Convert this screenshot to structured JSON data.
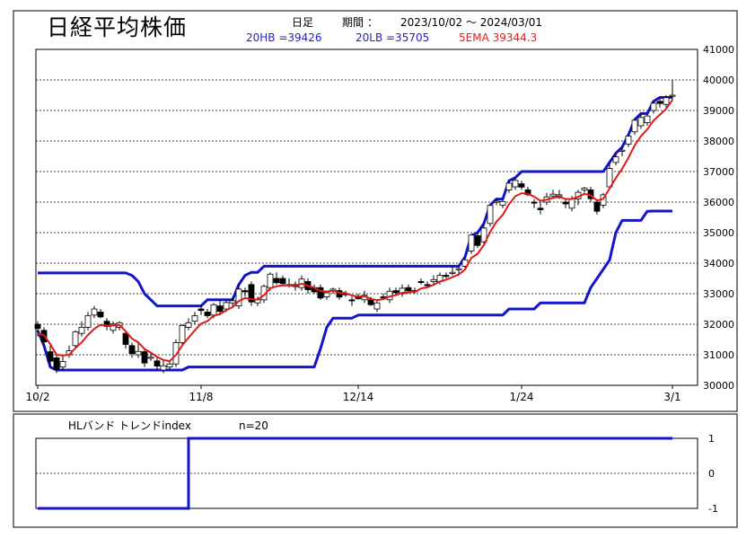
{
  "header": {
    "title": "日経平均株価",
    "period_prefix": "日足",
    "period_label": "期間 ：",
    "period_range": "2023/10/02 ～ 2024/03/01",
    "hb_label": "20HB =39426",
    "lb_label": "20LB =35705",
    "ema_label": "5EMA 39344.3"
  },
  "colors": {
    "band": "#1414c8",
    "ema": "#e01818",
    "up": "#ffffff",
    "down": "#000000",
    "grid": "#000000",
    "indicator": "#1414c8"
  },
  "chart_data": [
    {
      "type": "candlestick",
      "ylim": [
        30000,
        41000
      ],
      "yticks": [
        "30000",
        "31000",
        "32000",
        "33000",
        "34000",
        "35000",
        "36000",
        "37000",
        "38000",
        "39000",
        "40000",
        "41000"
      ],
      "ytick_values": [
        30000,
        31000,
        32000,
        33000,
        34000,
        35000,
        36000,
        37000,
        38000,
        39000,
        40000,
        41000
      ],
      "xticks": [
        "10/2",
        "11/8",
        "12/14",
        "1/24",
        "3/1"
      ],
      "xtick_index": [
        0,
        26,
        51,
        77,
        101
      ],
      "n_bars": 102,
      "close": [
        31860,
        31420,
        30790,
        30520,
        30780,
        31130,
        31750,
        31900,
        32280,
        32500,
        32240,
        31930,
        32010,
        32050,
        31340,
        31040,
        31110,
        30730,
        30920,
        30630,
        30640,
        30700,
        31400,
        31960,
        32050,
        32280,
        32450,
        32280,
        32640,
        32420,
        32710,
        32770,
        33150,
        33060,
        32730,
        32800,
        33240,
        33640,
        33360,
        33330,
        33280,
        33230,
        33480,
        33130,
        33060,
        32860,
        33030,
        33150,
        32890,
        32990,
        32770,
        32840,
        32950,
        32640,
        32700,
        32870,
        33080,
        33030,
        33180,
        33100,
        33090,
        33380,
        33280,
        33460,
        33600,
        33590,
        33700,
        33820,
        34110,
        34920,
        34580,
        35150,
        35890,
        36030,
        36020,
        36620,
        36710,
        36490,
        36240,
        35990,
        35750,
        36170,
        36260,
        36240,
        35940,
        36110,
        36320,
        36460,
        36110,
        35700,
        36240,
        37100,
        37480,
        37700,
        38160,
        38680,
        38770,
        38820,
        39240,
        39230,
        39420,
        39500
      ],
      "open": [
        32000,
        31800,
        31100,
        30900,
        30600,
        31000,
        31300,
        31700,
        31900,
        32300,
        32400,
        32100,
        31800,
        31900,
        31700,
        31300,
        31000,
        31100,
        30900,
        30800,
        30500,
        30600,
        30700,
        31400,
        31900,
        32100,
        32500,
        32400,
        32300,
        32600,
        32500,
        32700,
        32600,
        33100,
        33300,
        32700,
        32800,
        33200,
        33500,
        33500,
        33300,
        33300,
        33200,
        33400,
        33200,
        33200,
        32900,
        33100,
        33100,
        33000,
        32800,
        32900,
        32800,
        32800,
        32500,
        32900,
        32800,
        33100,
        33000,
        33200,
        33100,
        33400,
        33300,
        33400,
        33400,
        33600,
        33700,
        33800,
        33900,
        34400,
        34900,
        34700,
        35300,
        36000,
        35900,
        36400,
        36500,
        36600,
        36400,
        36000,
        35800,
        36000,
        36200,
        36200,
        36000,
        35800,
        36100,
        36400,
        36400,
        36000,
        35900,
        36500,
        37300,
        37700,
        37900,
        38300,
        38500,
        38600,
        39000,
        39300,
        39200,
        39500
      ],
      "high": [
        32100,
        31900,
        31300,
        31000,
        31000,
        31300,
        31800,
        32100,
        32400,
        32600,
        32500,
        32200,
        32100,
        32100,
        31800,
        31400,
        31400,
        31200,
        31100,
        30900,
        30800,
        30800,
        31500,
        32000,
        32200,
        32400,
        32600,
        32500,
        32700,
        32800,
        32800,
        32900,
        33300,
        33200,
        33400,
        32900,
        33300,
        33700,
        33700,
        33600,
        33500,
        33400,
        33600,
        33500,
        33300,
        33300,
        33100,
        33200,
        33200,
        33100,
        32900,
        33000,
        33100,
        32900,
        32800,
        33000,
        33200,
        33200,
        33300,
        33300,
        33200,
        33500,
        33400,
        33600,
        33700,
        33700,
        33900,
        33900,
        34200,
        34900,
        35000,
        35300,
        35900,
        36100,
        36100,
        36700,
        36800,
        36700,
        36500,
        36100,
        36000,
        36300,
        36400,
        36400,
        36100,
        36200,
        36400,
        36500,
        36500,
        36100,
        36300,
        37300,
        37600,
        37800,
        38200,
        38700,
        38900,
        38900,
        39300,
        39400,
        39500,
        40000
      ],
      "low": [
        31600,
        31300,
        30600,
        30400,
        30500,
        30900,
        31200,
        31600,
        31800,
        32200,
        32200,
        31800,
        31700,
        31800,
        31200,
        30900,
        30900,
        30600,
        30800,
        30500,
        30400,
        30500,
        30600,
        31300,
        31800,
        32000,
        32300,
        32200,
        32200,
        32300,
        32400,
        32600,
        32500,
        32900,
        32600,
        32600,
        32700,
        33100,
        33300,
        33300,
        33200,
        33100,
        33100,
        33000,
        33000,
        32800,
        32800,
        33000,
        32800,
        32900,
        32600,
        32800,
        32700,
        32600,
        32400,
        32800,
        32700,
        33000,
        32900,
        33000,
        33000,
        33300,
        33200,
        33300,
        33300,
        33500,
        33600,
        33600,
        33800,
        34300,
        34500,
        34600,
        35200,
        35900,
        35800,
        36300,
        36400,
        36400,
        36200,
        35800,
        35600,
        35900,
        36100,
        36100,
        35800,
        35700,
        35900,
        36300,
        36000,
        35600,
        35800,
        36400,
        37200,
        37500,
        37800,
        38200,
        38400,
        38500,
        38900,
        39100,
        39100,
        39300
      ],
      "ema5": [
        31700,
        31640,
        31350,
        31000,
        30980,
        31000,
        31220,
        31410,
        31650,
        31850,
        31980,
        31960,
        31960,
        31980,
        31770,
        31530,
        31410,
        31190,
        31070,
        30930,
        30830,
        30790,
        30990,
        31310,
        31560,
        31800,
        32020,
        32100,
        32280,
        32330,
        32460,
        32560,
        32760,
        32860,
        32820,
        32810,
        32950,
        33180,
        33240,
        33270,
        33270,
        33260,
        33330,
        33260,
        33200,
        33090,
        33070,
        33100,
        33030,
        33020,
        32940,
        32910,
        32920,
        32830,
        32790,
        32820,
        32910,
        32950,
        33030,
        33050,
        33060,
        33170,
        33210,
        33290,
        33400,
        33460,
        33540,
        33630,
        33790,
        34170,
        34310,
        34590,
        35020,
        35360,
        35580,
        35930,
        36190,
        36290,
        36270,
        36180,
        36040,
        36080,
        36140,
        36170,
        36100,
        36100,
        36170,
        36270,
        36220,
        36050,
        36110,
        36440,
        36790,
        37090,
        37450,
        37860,
        38160,
        38380,
        38670,
        38860,
        39050,
        39344
      ]
    },
    {
      "type": "line",
      "series": [
        {
          "name": "20HB",
          "values": [
            33680,
            33680,
            33680,
            33680,
            33680,
            33680,
            33680,
            33680,
            33680,
            33680,
            33680,
            33680,
            33680,
            33680,
            33680,
            33600,
            33400,
            33000,
            32800,
            32600,
            32600,
            32600,
            32600,
            32600,
            32600,
            32600,
            32600,
            32800,
            32800,
            32800,
            32800,
            32800,
            33300,
            33600,
            33700,
            33700,
            33900,
            33900,
            33900,
            33900,
            33900,
            33900,
            33900,
            33900,
            33900,
            33900,
            33900,
            33900,
            33900,
            33900,
            33900,
            33900,
            33900,
            33900,
            33900,
            33900,
            33900,
            33900,
            33900,
            33900,
            33900,
            33900,
            33900,
            33900,
            33900,
            33900,
            33900,
            33900,
            34200,
            34900,
            35000,
            35300,
            35900,
            36100,
            36100,
            36700,
            36800,
            37000,
            37000,
            37000,
            37000,
            37000,
            37000,
            37000,
            37000,
            37000,
            37000,
            37000,
            37000,
            37000,
            37000,
            37300,
            37600,
            37800,
            38200,
            38700,
            38900,
            38900,
            39300,
            39426,
            39426,
            39426
          ]
        },
        {
          "name": "20LB",
          "values": [
            31800,
            31300,
            30600,
            30500,
            30500,
            30500,
            30500,
            30500,
            30500,
            30500,
            30500,
            30500,
            30500,
            30500,
            30500,
            30500,
            30500,
            30500,
            30500,
            30500,
            30500,
            30500,
            30500,
            30500,
            30600,
            30600,
            30600,
            30600,
            30600,
            30600,
            30600,
            30600,
            30600,
            30600,
            30600,
            30600,
            30600,
            30600,
            30600,
            30600,
            30600,
            30600,
            30600,
            30600,
            30600,
            31200,
            31900,
            32200,
            32200,
            32200,
            32200,
            32300,
            32300,
            32300,
            32300,
            32300,
            32300,
            32300,
            32300,
            32300,
            32300,
            32300,
            32300,
            32300,
            32300,
            32300,
            32300,
            32300,
            32300,
            32300,
            32300,
            32300,
            32300,
            32300,
            32300,
            32500,
            32500,
            32500,
            32500,
            32500,
            32700,
            32700,
            32700,
            32700,
            32700,
            32700,
            32700,
            32700,
            33200,
            33500,
            33800,
            34100,
            35000,
            35400,
            35400,
            35400,
            35400,
            35700,
            35705,
            35705,
            35705,
            35705
          ]
        }
      ]
    },
    {
      "type": "line",
      "title": "HLバンド トレンドindex",
      "n_label": "n=20",
      "ylim": [
        -1,
        1
      ],
      "yticks": [
        "1",
        "0",
        "-1"
      ],
      "ytick_values": [
        1,
        0,
        -1
      ],
      "values": [
        -1,
        -1,
        -1,
        -1,
        -1,
        -1,
        -1,
        -1,
        -1,
        -1,
        -1,
        -1,
        -1,
        -1,
        -1,
        -1,
        -1,
        -1,
        -1,
        -1,
        -1,
        -1,
        -1,
        -1,
        1,
        1,
        1,
        1,
        1,
        1,
        1,
        1,
        1,
        1,
        1,
        1,
        1,
        1,
        1,
        1,
        1,
        1,
        1,
        1,
        1,
        1,
        1,
        1,
        1,
        1,
        1,
        1,
        1,
        1,
        1,
        1,
        1,
        1,
        1,
        1,
        1,
        1,
        1,
        1,
        1,
        1,
        1,
        1,
        1,
        1,
        1,
        1,
        1,
        1,
        1,
        1,
        1,
        1,
        1,
        1,
        1,
        1,
        1,
        1,
        1,
        1,
        1,
        1,
        1,
        1,
        1,
        1,
        1,
        1,
        1,
        1,
        1,
        1,
        1,
        1,
        1,
        1
      ]
    }
  ]
}
